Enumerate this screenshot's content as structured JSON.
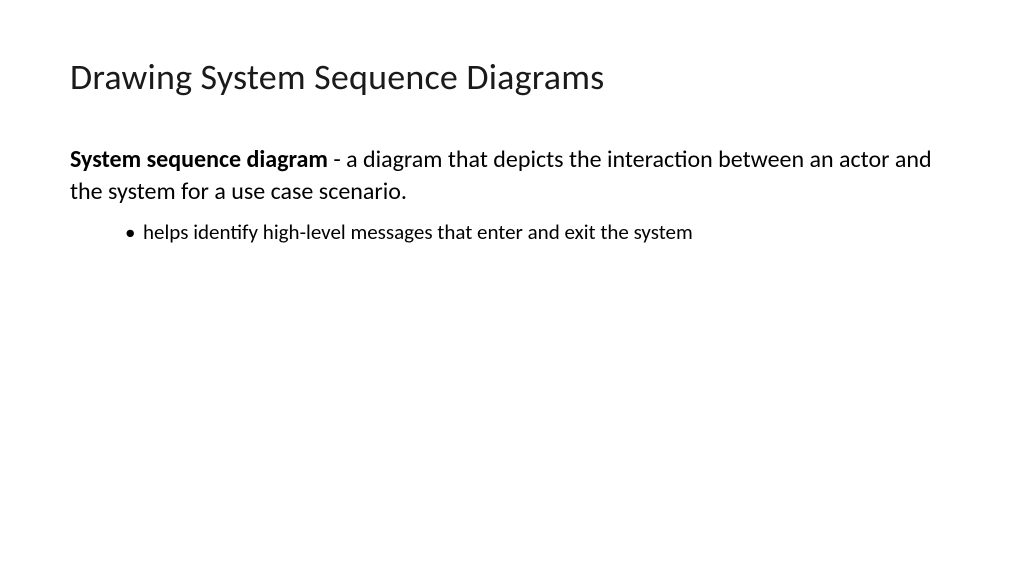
{
  "slide": {
    "title": "Drawing System Sequence Diagrams",
    "definition_term": "System sequence diagram",
    "definition_text": " - a diagram that depicts the interaction between an actor and the system for a use case scenario.",
    "bullets": [
      "helps identify high-level messages that enter and exit the system"
    ],
    "styling": {
      "background_color": "#ffffff",
      "text_color": "#000000",
      "title_fontsize": 36,
      "body_fontsize": 24,
      "bullet_fontsize": 21,
      "font_family": "Calibri"
    }
  }
}
